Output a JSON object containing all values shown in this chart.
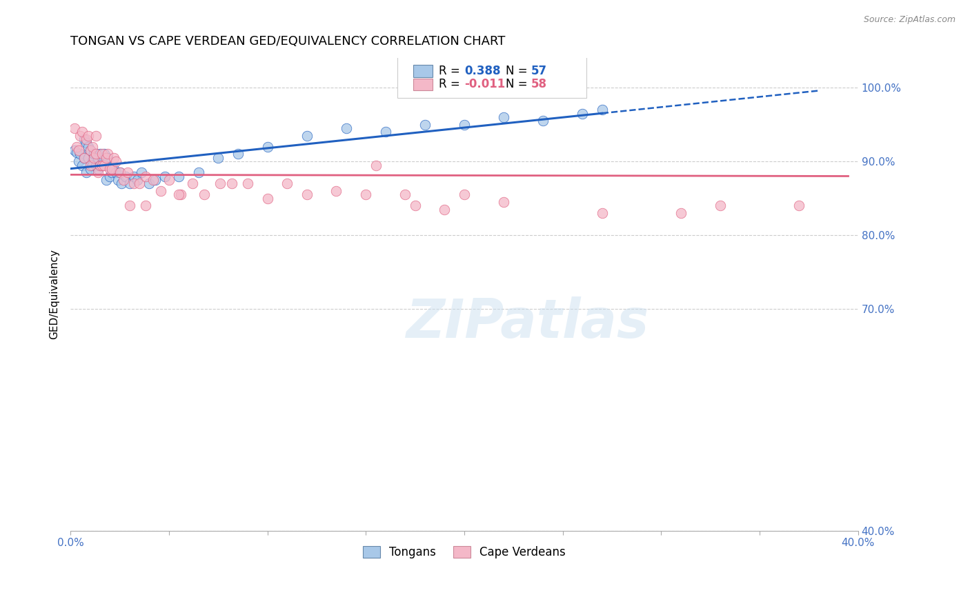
{
  "title": "TONGAN VS CAPE VERDEAN GED/EQUIVALENCY CORRELATION CHART",
  "source": "Source: ZipAtlas.com",
  "ylabel": "GED/Equivalency",
  "legend_label1": "Tongans",
  "legend_label2": "Cape Verdeans",
  "blue_color": "#a8c8e8",
  "pink_color": "#f4b8c8",
  "trend_blue": "#2060c0",
  "trend_pink": "#e06080",
  "xlim": [
    0.0,
    0.4
  ],
  "ylim": [
    0.4,
    1.04
  ],
  "ytick_vals": [
    0.4,
    0.7,
    0.8,
    0.9,
    1.0
  ],
  "ytick_labels": [
    "40.0%",
    "70.0%",
    "80.0%",
    "90.0%",
    "100.0%"
  ],
  "xtick_vals": [
    0.0,
    0.05,
    0.1,
    0.15,
    0.2,
    0.25,
    0.3,
    0.35,
    0.4
  ],
  "watermark_text": "ZIPatlas",
  "tongan_x": [
    0.002,
    0.003,
    0.004,
    0.005,
    0.006,
    0.007,
    0.007,
    0.008,
    0.008,
    0.009,
    0.009,
    0.01,
    0.01,
    0.011,
    0.011,
    0.012,
    0.013,
    0.013,
    0.014,
    0.014,
    0.015,
    0.015,
    0.016,
    0.016,
    0.017,
    0.018,
    0.018,
    0.019,
    0.02,
    0.021,
    0.022,
    0.023,
    0.024,
    0.025,
    0.026,
    0.028,
    0.03,
    0.032,
    0.034,
    0.036,
    0.04,
    0.043,
    0.048,
    0.055,
    0.065,
    0.075,
    0.085,
    0.1,
    0.12,
    0.14,
    0.16,
    0.18,
    0.2,
    0.22,
    0.24,
    0.26,
    0.27
  ],
  "tongan_y": [
    0.915,
    0.912,
    0.9,
    0.91,
    0.895,
    0.905,
    0.93,
    0.925,
    0.885,
    0.905,
    0.92,
    0.915,
    0.89,
    0.9,
    0.895,
    0.91,
    0.895,
    0.91,
    0.89,
    0.905,
    0.895,
    0.91,
    0.905,
    0.895,
    0.91,
    0.875,
    0.895,
    0.905,
    0.88,
    0.885,
    0.89,
    0.885,
    0.875,
    0.885,
    0.87,
    0.88,
    0.87,
    0.88,
    0.875,
    0.885,
    0.87,
    0.875,
    0.88,
    0.88,
    0.885,
    0.905,
    0.91,
    0.92,
    0.935,
    0.945,
    0.94,
    0.95,
    0.95,
    0.96,
    0.955,
    0.965,
    0.97
  ],
  "capeverdean_x": [
    0.002,
    0.003,
    0.004,
    0.005,
    0.006,
    0.007,
    0.008,
    0.009,
    0.01,
    0.01,
    0.011,
    0.012,
    0.013,
    0.013,
    0.014,
    0.015,
    0.016,
    0.016,
    0.017,
    0.018,
    0.019,
    0.02,
    0.021,
    0.022,
    0.023,
    0.025,
    0.027,
    0.029,
    0.032,
    0.035,
    0.038,
    0.042,
    0.046,
    0.05,
    0.056,
    0.062,
    0.068,
    0.076,
    0.082,
    0.09,
    0.1,
    0.11,
    0.12,
    0.135,
    0.15,
    0.17,
    0.2,
    0.22,
    0.055,
    0.03,
    0.038,
    0.19,
    0.27,
    0.31,
    0.155,
    0.175,
    0.33,
    0.37
  ],
  "capeverdean_y": [
    0.945,
    0.92,
    0.915,
    0.935,
    0.94,
    0.905,
    0.93,
    0.935,
    0.915,
    0.895,
    0.92,
    0.905,
    0.935,
    0.91,
    0.885,
    0.895,
    0.91,
    0.895,
    0.895,
    0.905,
    0.91,
    0.89,
    0.89,
    0.905,
    0.9,
    0.885,
    0.875,
    0.885,
    0.87,
    0.87,
    0.88,
    0.875,
    0.86,
    0.875,
    0.855,
    0.87,
    0.855,
    0.87,
    0.87,
    0.87,
    0.85,
    0.87,
    0.855,
    0.86,
    0.855,
    0.855,
    0.855,
    0.845,
    0.855,
    0.84,
    0.84,
    0.835,
    0.83,
    0.83,
    0.895,
    0.84,
    0.84,
    0.84
  ]
}
